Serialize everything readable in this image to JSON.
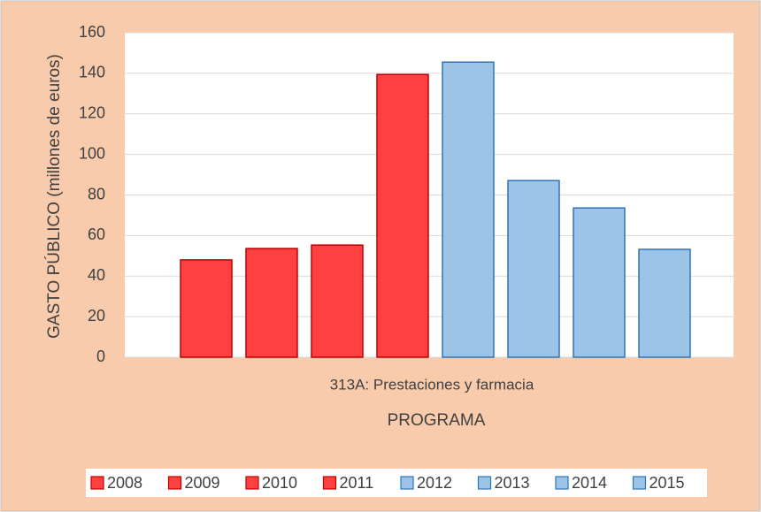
{
  "chart_data": {
    "type": "bar",
    "categories": [
      "313A: Prestaciones y farmacia"
    ],
    "series": [
      {
        "name": "2008",
        "color": "#ff4040",
        "values": [
          48
        ]
      },
      {
        "name": "2009",
        "color": "#ff4040",
        "values": [
          53.6
        ]
      },
      {
        "name": "2010",
        "color": "#ff4040",
        "values": [
          55.3
        ]
      },
      {
        "name": "2011",
        "color": "#ff4040",
        "values": [
          139.4
        ]
      },
      {
        "name": "2012",
        "color": "#9dc3e6",
        "values": [
          145.5
        ]
      },
      {
        "name": "2013",
        "color": "#9dc3e6",
        "values": [
          87.1
        ]
      },
      {
        "name": "2014",
        "color": "#9dc3e6",
        "values": [
          73.6
        ]
      },
      {
        "name": "2015",
        "color": "#9dc3e6",
        "values": [
          53.2
        ]
      }
    ],
    "xlabel": "PROGRAMA",
    "ylabel": "GASTO PÚBLICO (millones de euros)",
    "ylim": [
      0,
      160
    ],
    "yticks": [
      0,
      20,
      40,
      60,
      80,
      100,
      120,
      140,
      160
    ],
    "grid": true,
    "legend": "bottom"
  }
}
